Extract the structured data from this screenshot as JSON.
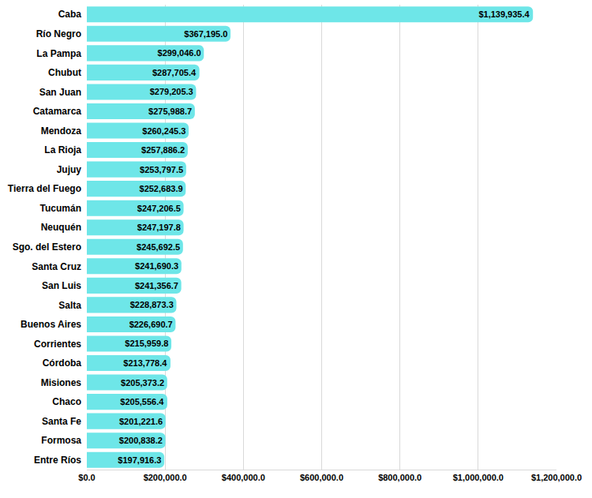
{
  "chart_data": {
    "type": "bar",
    "orientation": "horizontal",
    "categories": [
      "Caba",
      "Río Negro",
      "La Pampa",
      "Chubut",
      "San Juan",
      "Catamarca",
      "Mendoza",
      "La Rioja",
      "Jujuy",
      "Tierra del Fuego",
      "Tucumán",
      "Neuquén",
      "Sgo. del Estero",
      "Santa Cruz",
      "San Luis",
      "Salta",
      "Buenos Aires",
      "Corrientes",
      "Córdoba",
      "Misiones",
      "Chaco",
      "Santa Fe",
      "Formosa",
      "Entre Ríos"
    ],
    "values": [
      1139935.4,
      367195.0,
      299046.0,
      287705.4,
      279205.3,
      275988.7,
      260245.3,
      257886.2,
      253797.5,
      252683.9,
      247206.5,
      247197.8,
      245692.5,
      241690.3,
      241356.7,
      228873.3,
      226690.7,
      215959.8,
      213778.4,
      205373.2,
      205556.4,
      201221.6,
      200838.2,
      197916.3
    ],
    "value_labels": [
      "$1,139,935.4",
      "$367,195.0",
      "$299,046.0",
      "$287,705.4",
      "$279,205.3",
      "$275,988.7",
      "$260,245.3",
      "$257,886.2",
      "$253,797.5",
      "$252,683.9",
      "$247,206.5",
      "$247,197.8",
      "$245,692.5",
      "$241,690.3",
      "$241,356.7",
      "$228,873.3",
      "$226,690.7",
      "$215,959.8",
      "$213,778.4",
      "$205,373.2",
      "$205,556.4",
      "$201,221.6",
      "$200,838.2",
      "$197,916.3"
    ],
    "color": "#6ee6e8",
    "data_labels": true,
    "grid": true,
    "xlim": [
      0,
      1200000
    ],
    "xticks": [
      {
        "value": 0,
        "label": "$0.0"
      },
      {
        "value": 200000,
        "label": "$200,000.0"
      },
      {
        "value": 400000,
        "label": "$400,000.0"
      },
      {
        "value": 600000,
        "label": "$600,000.0"
      },
      {
        "value": 800000,
        "label": "$800,000.0"
      },
      {
        "value": 1000000,
        "label": "$1,000,000.0"
      },
      {
        "value": 1200000,
        "label": "$1,200,000.0"
      }
    ]
  }
}
